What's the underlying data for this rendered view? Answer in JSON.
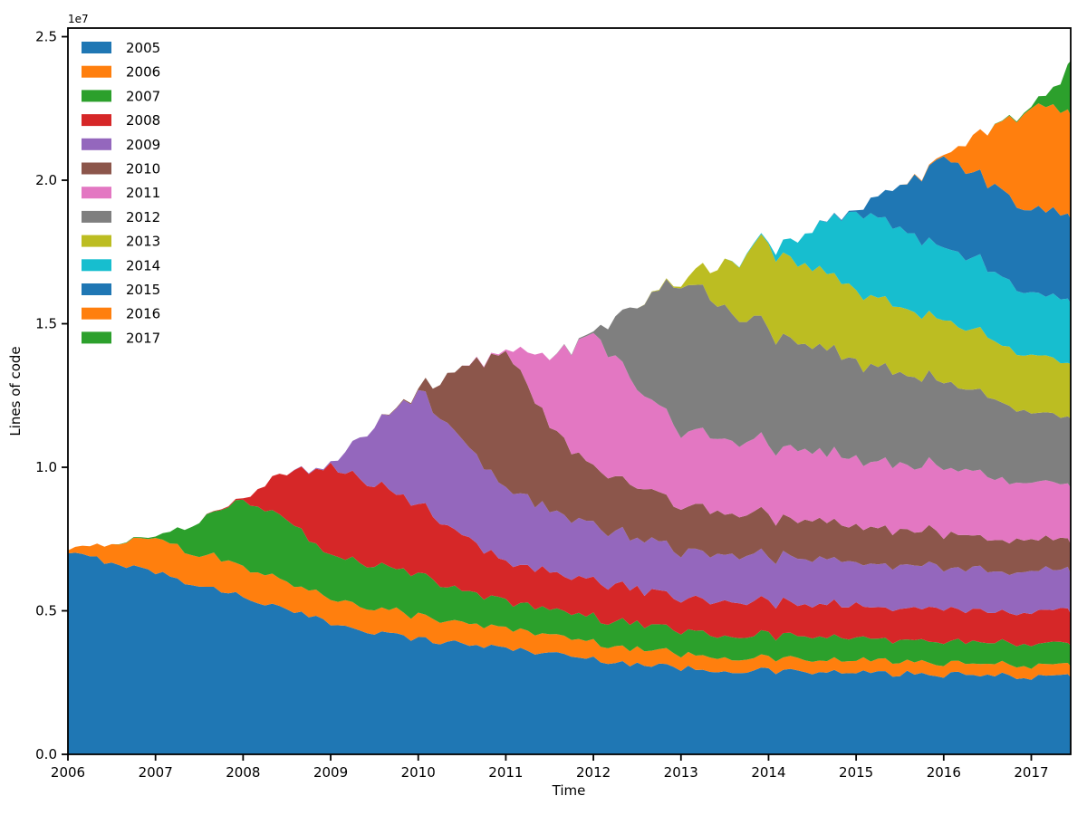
{
  "figure": {
    "offset_label": "1e7",
    "xlabel": "Time",
    "ylabel": "Lines of code"
  },
  "chart_data": {
    "type": "area",
    "stacked": true,
    "title": "",
    "xlabel": "Time",
    "ylabel": "Lines of code",
    "y_scale_label": "1e7",
    "unit": "1e7 lines of code",
    "legend_position": "upper left",
    "grid": false,
    "xlim": [
      2006,
      2017.45
    ],
    "ylim": [
      0,
      2.53
    ],
    "x_ticks": [
      "2006",
      "2007",
      "2008",
      "2009",
      "2010",
      "2011",
      "2012",
      "2013",
      "2014",
      "2015",
      "2016",
      "2017"
    ],
    "y_ticks": [
      "0.0",
      "0.5",
      "1.0",
      "1.5",
      "2.0",
      "2.5"
    ],
    "x": [
      2006.0,
      2006.5,
      2007.0,
      2007.5,
      2008.0,
      2008.5,
      2009.0,
      2009.5,
      2010.0,
      2010.5,
      2011.0,
      2011.5,
      2012.0,
      2012.5,
      2013.0,
      2013.5,
      2014.0,
      2014.5,
      2015.0,
      2015.5,
      2016.0,
      2016.5,
      2017.0,
      2017.15,
      2017.3,
      2017.45
    ],
    "series": [
      {
        "name": "2005",
        "color": "#1f77b4",
        "values": [
          0.7,
          0.67,
          0.635,
          0.588,
          0.552,
          0.5,
          0.458,
          0.428,
          0.401,
          0.386,
          0.37,
          0.352,
          0.332,
          0.315,
          0.3,
          0.294,
          0.29,
          0.286,
          0.283,
          0.28,
          0.277,
          0.274,
          0.271,
          0.27,
          0.27,
          0.269
        ]
      },
      {
        "name": "2006",
        "color": "#ff7f0e",
        "values": [
          0.01,
          0.065,
          0.116,
          0.112,
          0.105,
          0.096,
          0.09,
          0.085,
          0.082,
          0.075,
          0.069,
          0.064,
          0.06,
          0.055,
          0.05,
          0.048,
          0.046,
          0.044,
          0.043,
          0.042,
          0.041,
          0.04,
          0.039,
          0.039,
          0.038,
          0.038
        ]
      },
      {
        "name": "2007",
        "color": "#2ca02c",
        "values": [
          0,
          0,
          0.005,
          0.115,
          0.225,
          0.215,
          0.15,
          0.145,
          0.142,
          0.115,
          0.092,
          0.091,
          0.09,
          0.086,
          0.082,
          0.08,
          0.079,
          0.078,
          0.077,
          0.076,
          0.075,
          0.074,
          0.073,
          0.073,
          0.072,
          0.072
        ]
      },
      {
        "name": "2008",
        "color": "#d62728",
        "values": [
          0,
          0,
          0,
          0,
          0.005,
          0.16,
          0.31,
          0.28,
          0.244,
          0.19,
          0.136,
          0.13,
          0.126,
          0.121,
          0.117,
          0.116,
          0.115,
          0.114,
          0.113,
          0.113,
          0.112,
          0.112,
          0.112,
          0.111,
          0.111,
          0.111
        ]
      },
      {
        "name": "2009",
        "color": "#9467bd",
        "values": [
          0,
          0,
          0,
          0,
          0,
          0,
          0.005,
          0.2,
          0.39,
          0.33,
          0.259,
          0.22,
          0.19,
          0.178,
          0.167,
          0.162,
          0.158,
          0.154,
          0.151,
          0.148,
          0.145,
          0.143,
          0.141,
          0.14,
          0.14,
          0.139
        ]
      },
      {
        "name": "2010",
        "color": "#8c564b",
        "values": [
          0,
          0,
          0,
          0,
          0,
          0,
          0,
          0,
          0.005,
          0.25,
          0.48,
          0.3,
          0.202,
          0.18,
          0.158,
          0.148,
          0.14,
          0.132,
          0.125,
          0.122,
          0.12,
          0.115,
          0.11,
          0.107,
          0.105,
          0.104
        ]
      },
      {
        "name": "2011",
        "color": "#e377c2",
        "values": [
          0,
          0,
          0,
          0,
          0,
          0,
          0,
          0,
          0,
          0,
          0.005,
          0.24,
          0.47,
          0.35,
          0.26,
          0.255,
          0.25,
          0.243,
          0.235,
          0.232,
          0.23,
          0.215,
          0.2,
          0.198,
          0.197,
          0.196
        ]
      },
      {
        "name": "2012",
        "color": "#7f7f7f",
        "values": [
          0,
          0,
          0,
          0,
          0,
          0,
          0,
          0,
          0,
          0,
          0,
          0,
          0.005,
          0.28,
          0.53,
          0.46,
          0.4,
          0.37,
          0.34,
          0.32,
          0.3,
          0.275,
          0.25,
          0.246,
          0.243,
          0.241
        ]
      },
      {
        "name": "2013",
        "color": "#bcbd22",
        "values": [
          0,
          0,
          0,
          0,
          0,
          0,
          0,
          0,
          0,
          0,
          0,
          0,
          0,
          0,
          0.005,
          0.15,
          0.3,
          0.27,
          0.25,
          0.23,
          0.21,
          0.202,
          0.195,
          0.193,
          0.191,
          0.19
        ]
      },
      {
        "name": "2014",
        "color": "#17becf",
        "values": [
          0,
          0,
          0,
          0,
          0,
          0,
          0,
          0,
          0,
          0,
          0,
          0,
          0,
          0,
          0,
          0,
          0.005,
          0.13,
          0.28,
          0.27,
          0.26,
          0.24,
          0.22,
          0.216,
          0.214,
          0.212
        ]
      },
      {
        "name": "2015",
        "color": "#1f77b4",
        "values": [
          0,
          0,
          0,
          0,
          0,
          0,
          0,
          0,
          0,
          0,
          0,
          0,
          0,
          0,
          0,
          0,
          0,
          0,
          0.005,
          0.15,
          0.31,
          0.3,
          0.296,
          0.295,
          0.295,
          0.294
        ]
      },
      {
        "name": "2016",
        "color": "#ff7f0e",
        "values": [
          0,
          0,
          0,
          0,
          0,
          0,
          0,
          0,
          0,
          0,
          0,
          0,
          0,
          0,
          0,
          0,
          0,
          0,
          0,
          0,
          0.005,
          0.18,
          0.36,
          0.36,
          0.36,
          0.36
        ]
      },
      {
        "name": "2017",
        "color": "#2ca02c",
        "values": [
          0,
          0,
          0,
          0,
          0,
          0,
          0,
          0,
          0,
          0,
          0,
          0,
          0,
          0,
          0,
          0,
          0,
          0,
          0,
          0,
          0,
          0,
          0.005,
          0.04,
          0.065,
          0.19
        ]
      }
    ]
  }
}
